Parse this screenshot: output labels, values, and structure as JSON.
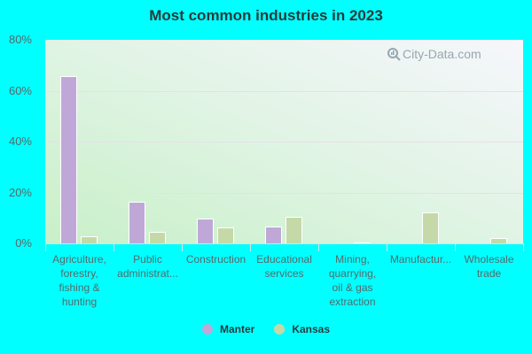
{
  "chart_data": {
    "type": "bar",
    "title": "Most common industries in 2023",
    "xlabel": "",
    "ylabel": "",
    "ylim": [
      0,
      80
    ],
    "yticks": [
      "0%",
      "20%",
      "40%",
      "60%",
      "80%"
    ],
    "grid": true,
    "legend_position": "bottom",
    "categories": [
      "Agriculture,\nforestry,\nfishing &\nhunting",
      "Public\nadministrat...",
      "Construction",
      "Educational\nservices",
      "Mining,\nquarrying,\noil & gas\nextraction",
      "Manufactur...",
      "Wholesale\ntrade"
    ],
    "series": [
      {
        "name": "Manter",
        "color": "#bfa8d8",
        "values": [
          65.7,
          16.4,
          9.7,
          6.5,
          0,
          0,
          0
        ]
      },
      {
        "name": "Kansas",
        "color": "#c5d9a8",
        "values": [
          2.8,
          4.5,
          6.2,
          10.4,
          0.3,
          12.2,
          2.1
        ]
      }
    ]
  },
  "watermark": "City-Data.com"
}
